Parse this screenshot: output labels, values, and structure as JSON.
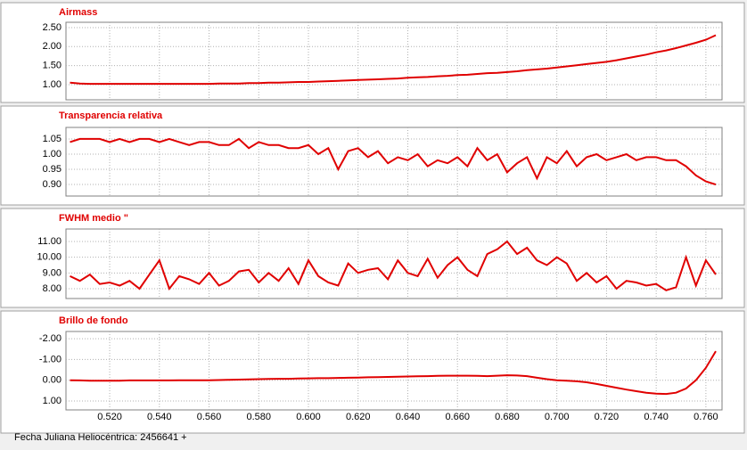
{
  "chart_data": {
    "type": "line",
    "xlabel": "Fecha Juliana Heliocéntrica: 2456641 +",
    "xlim": [
      0.5024,
      0.7665
    ],
    "xticks": [
      {
        "value": 0.52,
        "label": "0.520"
      },
      {
        "value": 0.54,
        "label": "0.540"
      },
      {
        "value": 0.56,
        "label": "0.560"
      },
      {
        "value": 0.58,
        "label": "0.580"
      },
      {
        "value": 0.6,
        "label": "0.600"
      },
      {
        "value": 0.62,
        "label": "0.620"
      },
      {
        "value": 0.64,
        "label": "0.640"
      },
      {
        "value": 0.66,
        "label": "0.660"
      },
      {
        "value": 0.68,
        "label": "0.680"
      },
      {
        "value": 0.7,
        "label": "0.700"
      },
      {
        "value": 0.72,
        "label": "0.720"
      },
      {
        "value": 0.74,
        "label": "0.740"
      },
      {
        "value": 0.76,
        "label": "0.760"
      }
    ],
    "grid": true,
    "x": [
      0.504,
      0.508,
      0.512,
      0.516,
      0.52,
      0.524,
      0.528,
      0.532,
      0.536,
      0.54,
      0.544,
      0.548,
      0.552,
      0.556,
      0.56,
      0.564,
      0.568,
      0.572,
      0.576,
      0.58,
      0.584,
      0.588,
      0.592,
      0.596,
      0.6,
      0.604,
      0.608,
      0.612,
      0.616,
      0.62,
      0.624,
      0.628,
      0.632,
      0.636,
      0.64,
      0.644,
      0.648,
      0.652,
      0.656,
      0.66,
      0.664,
      0.668,
      0.672,
      0.676,
      0.68,
      0.684,
      0.688,
      0.692,
      0.696,
      0.7,
      0.704,
      0.708,
      0.712,
      0.716,
      0.72,
      0.724,
      0.728,
      0.732,
      0.736,
      0.74,
      0.744,
      0.748,
      0.752,
      0.756,
      0.76,
      0.764
    ],
    "panels": [
      {
        "title": "Airmass",
        "color": "#e00000",
        "ylim": [
          0.6,
          2.64
        ],
        "y_inverted": false,
        "yticks": [
          {
            "value": 1,
            "label": "1.00"
          },
          {
            "value": 1.5,
            "label": "1.50"
          },
          {
            "value": 2,
            "label": "2.00"
          },
          {
            "value": 2.5,
            "label": "2.50"
          }
        ],
        "values": [
          1.05,
          1.03,
          1.02,
          1.02,
          1.02,
          1.02,
          1.02,
          1.02,
          1.02,
          1.02,
          1.02,
          1.02,
          1.02,
          1.02,
          1.02,
          1.03,
          1.03,
          1.03,
          1.04,
          1.04,
          1.05,
          1.05,
          1.06,
          1.07,
          1.07,
          1.08,
          1.09,
          1.1,
          1.11,
          1.12,
          1.13,
          1.14,
          1.15,
          1.16,
          1.18,
          1.19,
          1.2,
          1.22,
          1.23,
          1.25,
          1.26,
          1.28,
          1.3,
          1.31,
          1.33,
          1.35,
          1.38,
          1.4,
          1.42,
          1.45,
          1.48,
          1.51,
          1.54,
          1.57,
          1.6,
          1.64,
          1.69,
          1.74,
          1.79,
          1.85,
          1.9,
          1.96,
          2.03,
          2.1,
          2.18,
          2.3
        ]
      },
      {
        "title": "Transparencia relativa",
        "color": "#e00000",
        "ylim": [
          0.862,
          1.088
        ],
        "y_inverted": false,
        "yticks": [
          {
            "value": 0.9,
            "label": "0.90"
          },
          {
            "value": 0.95,
            "label": "0.95"
          },
          {
            "value": 1,
            "label": "1.00"
          },
          {
            "value": 1.05,
            "label": "1.05"
          }
        ],
        "values": [
          1.04,
          1.05,
          1.05,
          1.05,
          1.04,
          1.05,
          1.04,
          1.05,
          1.05,
          1.04,
          1.05,
          1.04,
          1.03,
          1.04,
          1.04,
          1.03,
          1.03,
          1.05,
          1.02,
          1.04,
          1.03,
          1.03,
          1.02,
          1.02,
          1.03,
          1.0,
          1.02,
          0.95,
          1.01,
          1.02,
          0.99,
          1.01,
          0.97,
          0.99,
          0.98,
          1.0,
          0.96,
          0.98,
          0.97,
          0.99,
          0.96,
          1.02,
          0.98,
          1.0,
          0.94,
          0.97,
          0.99,
          0.92,
          0.99,
          0.97,
          1.01,
          0.96,
          0.99,
          1.0,
          0.98,
          0.99,
          1.0,
          0.98,
          0.99,
          0.99,
          0.98,
          0.98,
          0.96,
          0.93,
          0.91,
          0.9
        ]
      },
      {
        "title": "FWHM medio \"",
        "color": "#e00000",
        "ylim": [
          7.38,
          11.79
        ],
        "y_inverted": false,
        "yticks": [
          {
            "value": 8,
            "label": "8.00"
          },
          {
            "value": 9,
            "label": "9.00"
          },
          {
            "value": 10,
            "label": "10.00"
          },
          {
            "value": 11,
            "label": "11.00"
          }
        ],
        "values": [
          8.8,
          8.5,
          8.9,
          8.3,
          8.4,
          8.2,
          8.5,
          8.0,
          8.9,
          9.8,
          8.0,
          8.8,
          8.6,
          8.3,
          9.0,
          8.2,
          8.5,
          9.1,
          9.2,
          8.4,
          9.0,
          8.5,
          9.3,
          8.3,
          9.8,
          8.8,
          8.4,
          8.2,
          9.6,
          9.0,
          9.2,
          9.3,
          8.6,
          9.8,
          9.0,
          8.8,
          9.9,
          8.7,
          9.5,
          10.0,
          9.2,
          8.8,
          10.2,
          10.5,
          11.0,
          10.2,
          10.6,
          9.8,
          9.5,
          10.0,
          9.6,
          8.5,
          9.0,
          8.4,
          8.8,
          8.0,
          8.5,
          8.4,
          8.2,
          8.3,
          7.9,
          8.1,
          10.0,
          8.2,
          9.8,
          8.9
        ]
      },
      {
        "title": "Brillo de fondo",
        "color": "#e00000",
        "ylim": [
          -2.35,
          1.43
        ],
        "y_inverted": true,
        "yticks": [
          {
            "value": -2,
            "label": "-2.00"
          },
          {
            "value": -1,
            "label": "-1.00"
          },
          {
            "value": 0,
            "label": "0.00"
          },
          {
            "value": 1,
            "label": "1.00"
          }
        ],
        "values": [
          0.0,
          0.01,
          0.02,
          0.02,
          0.02,
          0.02,
          0.01,
          0.01,
          0.01,
          0.01,
          0.01,
          0.0,
          0.0,
          0.0,
          0.0,
          -0.01,
          -0.02,
          -0.03,
          -0.04,
          -0.05,
          -0.06,
          -0.07,
          -0.07,
          -0.08,
          -0.09,
          -0.1,
          -0.1,
          -0.11,
          -0.12,
          -0.13,
          -0.14,
          -0.15,
          -0.16,
          -0.17,
          -0.18,
          -0.19,
          -0.2,
          -0.21,
          -0.22,
          -0.22,
          -0.22,
          -0.21,
          -0.2,
          -0.22,
          -0.24,
          -0.23,
          -0.2,
          -0.12,
          -0.05,
          0.0,
          0.02,
          0.05,
          0.1,
          0.18,
          0.27,
          0.36,
          0.45,
          0.53,
          0.6,
          0.65,
          0.66,
          0.6,
          0.4,
          0.0,
          -0.6,
          -1.4
        ]
      }
    ]
  }
}
